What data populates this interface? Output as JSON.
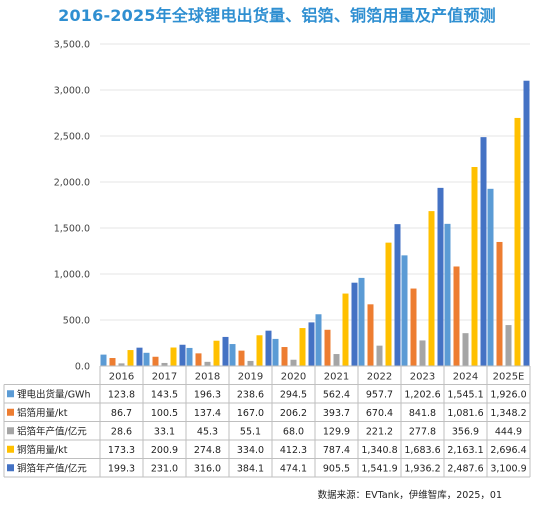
{
  "source": "数据来源：EVTank，伊维智库，2025，01",
  "chart_data": {
    "type": "bar",
    "title": "2016-2025年全球锂电出货量、铝箔、铜箔用量及产值预测",
    "categories": [
      "2016",
      "2017",
      "2018",
      "2019",
      "2020",
      "2021",
      "2022",
      "2023",
      "2024",
      "2025E"
    ],
    "ylim": [
      0,
      3500
    ],
    "yticks": [
      "0.0",
      "500.0",
      "1,000.0",
      "1,500.0",
      "2,000.0",
      "2,500.0",
      "3,000.0",
      "3,500.0"
    ],
    "series": [
      {
        "name": "锂电出货量/GWh",
        "color": "#5b9bd5",
        "values": [
          123.8,
          143.5,
          196.3,
          238.6,
          294.5,
          562.4,
          957.7,
          1202.6,
          1545.1,
          1926.0
        ],
        "labels": [
          "123.8",
          "143.5",
          "196.3",
          "238.6",
          "294.5",
          "562.4",
          "957.7",
          "1,202.6",
          "1,545.1",
          "1,926.0"
        ]
      },
      {
        "name": "铝箔用量/kt",
        "color": "#ed7d31",
        "values": [
          86.7,
          100.5,
          137.4,
          167.0,
          206.2,
          393.7,
          670.4,
          841.8,
          1081.6,
          1348.2
        ],
        "labels": [
          "86.7",
          "100.5",
          "137.4",
          "167.0",
          "206.2",
          "393.7",
          "670.4",
          "841.8",
          "1,081.6",
          "1,348.2"
        ]
      },
      {
        "name": "铝箔年产值/亿元",
        "color": "#a5a5a5",
        "values": [
          28.6,
          33.1,
          45.3,
          55.1,
          68.0,
          129.9,
          221.2,
          277.8,
          356.9,
          444.9
        ],
        "labels": [
          "28.6",
          "33.1",
          "45.3",
          "55.1",
          "68.0",
          "129.9",
          "221.2",
          "277.8",
          "356.9",
          "444.9"
        ]
      },
      {
        "name": "铜箔用量/kt",
        "color": "#ffc000",
        "values": [
          173.3,
          200.9,
          274.8,
          334.0,
          412.3,
          787.4,
          1340.8,
          1683.6,
          2163.1,
          2696.4
        ],
        "labels": [
          "173.3",
          "200.9",
          "274.8",
          "334.0",
          "412.3",
          "787.4",
          "1,340.8",
          "1,683.6",
          "2,163.1",
          "2,696.4"
        ]
      },
      {
        "name": "铜箔年产值/亿元",
        "color": "#4472c4",
        "values": [
          199.3,
          231.0,
          316.0,
          384.1,
          474.1,
          905.5,
          1541.9,
          1936.2,
          2487.6,
          3100.9
        ],
        "labels": [
          "199.3",
          "231.0",
          "316.0",
          "384.1",
          "474.1",
          "905.5",
          "1,541.9",
          "1,936.2",
          "2,487.6",
          "3,100.9"
        ]
      }
    ]
  }
}
